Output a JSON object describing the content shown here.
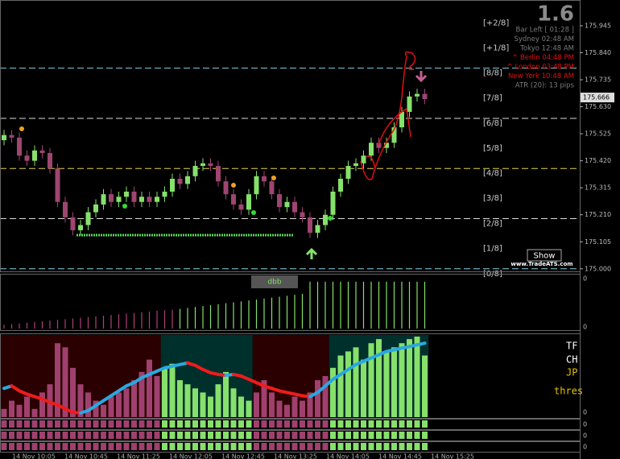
{
  "chart_data": [
    {
      "type": "candlestick",
      "x_labels": [
        "14 Nov 10:05",
        "14 Nov 10:45",
        "14 Nov 11:25",
        "14 Nov 12:05",
        "14 Nov 12:45",
        "14 Nov 13:25",
        "14 Nov 14:05",
        "14 Nov 14:45",
        "14 Nov 15:25"
      ],
      "open": [
        175.5,
        175.52,
        175.51,
        175.44,
        175.42,
        175.46,
        175.45,
        175.39,
        175.26,
        175.2,
        175.15,
        175.17,
        175.22,
        175.25,
        175.29,
        175.26,
        175.28,
        175.3,
        175.26,
        175.28,
        175.26,
        175.28,
        175.3,
        175.35,
        175.33,
        175.36,
        175.4,
        175.41,
        175.4,
        175.34,
        175.29,
        175.25,
        175.23,
        175.29,
        175.36,
        175.34,
        175.29,
        175.24,
        175.26,
        175.22,
        175.2,
        175.14,
        175.17,
        175.21,
        175.3,
        175.35,
        175.4,
        175.41,
        175.44,
        175.49,
        175.47,
        175.49,
        175.55,
        175.61,
        175.67,
        175.68
      ],
      "high": [
        175.54,
        175.54,
        175.53,
        175.46,
        175.48,
        175.48,
        175.47,
        175.41,
        175.28,
        175.22,
        175.19,
        175.24,
        175.27,
        175.31,
        175.31,
        175.3,
        175.32,
        175.32,
        175.3,
        175.3,
        175.3,
        175.32,
        175.37,
        175.37,
        175.38,
        175.42,
        175.43,
        175.43,
        175.42,
        175.36,
        175.31,
        175.27,
        175.31,
        175.38,
        175.38,
        175.36,
        175.31,
        175.28,
        175.28,
        175.24,
        175.22,
        175.19,
        175.23,
        175.32,
        175.37,
        175.42,
        175.43,
        175.46,
        175.51,
        175.51,
        175.51,
        175.57,
        175.63,
        175.69,
        175.7,
        175.7
      ],
      "low": [
        175.48,
        175.49,
        175.42,
        175.4,
        175.4,
        175.43,
        175.37,
        175.24,
        175.18,
        175.13,
        175.13,
        175.15,
        175.2,
        175.23,
        175.24,
        175.24,
        175.26,
        175.24,
        175.24,
        175.24,
        175.24,
        175.26,
        175.28,
        175.31,
        175.31,
        175.34,
        175.38,
        175.38,
        175.32,
        175.27,
        175.23,
        175.21,
        175.21,
        175.27,
        175.32,
        175.27,
        175.22,
        175.22,
        175.2,
        175.18,
        175.12,
        175.12,
        175.15,
        175.19,
        175.28,
        175.33,
        175.38,
        175.39,
        175.42,
        175.45,
        175.45,
        175.47,
        175.53,
        175.59,
        175.65,
        175.64
      ],
      "close": [
        175.52,
        175.51,
        175.44,
        175.42,
        175.46,
        175.45,
        175.39,
        175.26,
        175.2,
        175.15,
        175.17,
        175.22,
        175.25,
        175.29,
        175.26,
        175.28,
        175.3,
        175.26,
        175.28,
        175.26,
        175.28,
        175.3,
        175.35,
        175.33,
        175.36,
        175.4,
        175.41,
        175.4,
        175.34,
        175.29,
        175.25,
        175.23,
        175.29,
        175.36,
        175.34,
        175.29,
        175.24,
        175.26,
        175.22,
        175.2,
        175.14,
        175.17,
        175.21,
        175.3,
        175.35,
        175.4,
        175.41,
        175.44,
        175.49,
        175.47,
        175.49,
        175.55,
        175.61,
        175.67,
        175.68,
        175.66
      ],
      "up_color": "#86e06b",
      "down_color": "#9e4570",
      "ylim": [
        174.99,
        176.045
      ],
      "yticks": [
        175.945,
        {
          "value": 175.84,
          "label": "175.840"
        },
        175.735,
        {
          "value": 175.63,
          "label": "175.630"
        },
        175.525,
        {
          "value": 175.42,
          "label": "175.420"
        },
        175.315,
        {
          "value": 175.21,
          "label": "175.210"
        },
        175.105,
        {
          "value": 175.0,
          "label": "175.000"
        }
      ],
      "current_price": 175.666,
      "murrey": [
        {
          "label": "[+2/8]",
          "value": 175.975,
          "line_color": null
        },
        {
          "label": "[+1/8]",
          "value": 175.878,
          "line_color": null
        },
        {
          "label": "[8/8]",
          "value": 175.78,
          "line_color": "#7fd3e6"
        },
        {
          "label": "[7/8]",
          "value": 175.683,
          "line_color": null
        },
        {
          "label": "[6/8]",
          "value": 175.585,
          "line_color": "#dddddd"
        },
        {
          "label": "[5/8]",
          "value": 175.488,
          "line_color": null
        },
        {
          "label": "[4/8]",
          "value": 175.39,
          "line_color": "#e6d24a"
        },
        {
          "label": "[3/8]",
          "value": 175.293,
          "line_color": null
        },
        {
          "label": "[2/8]",
          "value": 175.195,
          "line_color": "#dddddd"
        },
        {
          "label": "[1/8]",
          "value": 175.098,
          "line_color": null
        },
        {
          "label": "[0/8]",
          "value": 175.0,
          "line_color": "#7fd3e6"
        }
      ]
    },
    {
      "type": "bar",
      "series": [
        {
          "name": "dbb",
          "color": "#b0407a",
          "values": [
            8,
            9.5,
            11,
            12.5,
            14,
            15.5,
            17,
            18.5,
            20,
            21.5,
            23,
            24.5,
            26,
            27.5,
            29,
            30.5,
            32,
            33.5,
            35,
            36.5,
            38,
            39,
            40,
            null,
            null,
            null,
            null,
            null,
            null,
            null,
            null,
            null,
            null,
            null,
            null,
            null,
            null,
            null,
            null,
            null,
            null,
            null,
            null,
            null,
            null,
            null,
            null,
            null,
            null,
            null,
            null,
            null,
            null,
            null,
            null,
            null
          ]
        },
        {
          "name": "dbb",
          "color": "#86e06b",
          "values": [
            null,
            null,
            null,
            null,
            null,
            null,
            null,
            null,
            null,
            null,
            null,
            null,
            null,
            null,
            null,
            null,
            null,
            null,
            null,
            null,
            null,
            null,
            null,
            42,
            44,
            46,
            48,
            50,
            52,
            54,
            56,
            58,
            60,
            62,
            64,
            66,
            68,
            70,
            72,
            74,
            100,
            100,
            100,
            100,
            100,
            100,
            100,
            100,
            100,
            100,
            100,
            100,
            100,
            100,
            100,
            100
          ]
        }
      ],
      "ylim": [
        0,
        110
      ],
      "yticks": [
        0
      ],
      "top_label": "0"
    },
    {
      "type": "histogram-signal",
      "values": [
        10,
        20,
        15,
        25,
        10,
        30,
        40,
        90,
        85,
        60,
        40,
        30,
        20,
        15,
        25,
        30,
        35,
        45,
        55,
        70,
        50,
        60,
        65,
        45,
        40,
        35,
        30,
        25,
        40,
        55,
        35,
        25,
        20,
        30,
        45,
        30,
        20,
        15,
        25,
        20,
        30,
        45,
        50,
        60,
        75,
        80,
        85,
        70,
        90,
        95,
        80,
        85,
        90,
        95,
        98,
        75
      ],
      "signal": [
        35,
        38,
        32,
        28,
        25,
        22,
        18,
        15,
        10,
        6,
        5,
        8,
        14,
        20,
        26,
        32,
        38,
        42,
        48,
        52,
        56,
        60,
        62,
        64,
        66,
        63,
        58,
        54,
        52,
        51,
        52,
        50,
        46,
        42,
        38,
        35,
        32,
        30,
        28,
        26,
        25,
        30,
        38,
        46,
        52,
        58,
        64,
        68,
        72,
        76,
        80,
        82,
        84,
        86,
        88,
        90
      ],
      "signal_up_color": "#29a8e0",
      "signal_down_color": "#ee1c1c",
      "zones": [
        {
          "start": 0,
          "end": 20,
          "background": "#2a0000",
          "bar_color": "#a0406e"
        },
        {
          "start": 21,
          "end": 32,
          "background": "#00302c",
          "bar_color": "#86e06b"
        },
        {
          "start": 33,
          "end": 42,
          "background": "#2a0000",
          "bar_color": "#a0406e"
        },
        {
          "start": 43,
          "end": 55,
          "background": "#00302c",
          "bar_color": "#86e06b"
        }
      ],
      "ylim": [
        0,
        100
      ],
      "yticks": [
        0
      ],
      "row_labels": [
        "0",
        "0",
        "0"
      ],
      "side_texts": [
        {
          "text": "TF",
          "color": "#ffffff"
        },
        {
          "text": "CH",
          "color": "#ffffff"
        },
        {
          "text": "JP",
          "color": "#e6c200"
        },
        {
          "text": "thres",
          "color": "#e6c200"
        }
      ]
    }
  ],
  "info": {
    "big": "1.6",
    "lines": [
      {
        "text": "Bar Left   [ 01:28 ]",
        "color": "#7a7a7a"
      },
      {
        "text": "Sydney  02:48 AM",
        "color": "#7a7a7a"
      },
      {
        "text": "Tokyo  12:48 AM",
        "color": "#7a7a7a"
      },
      {
        "text": "^ Berlin  04:48 PM",
        "color": "#e01010"
      },
      {
        "text": "^ London  03:48 PM",
        "color": "#e01010"
      },
      {
        "text": "New York  10:48 AM",
        "color": "#e01010"
      },
      {
        "text": "ATR (20): 13 pips",
        "color": "#7a7a7a"
      }
    ],
    "button": "Show",
    "site": "www.TradeATS.com"
  }
}
